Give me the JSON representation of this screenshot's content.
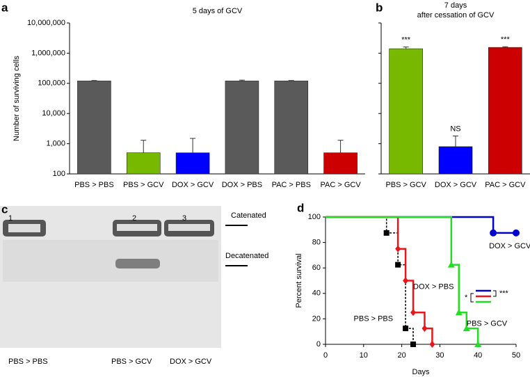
{
  "chart_data": [
    {
      "panel": "a",
      "type": "bar",
      "title": "5 days of GCV",
      "ylabel": "Number of surviving cells",
      "categories": [
        "PBS > PBS",
        "PBS > GCV",
        "DOX > GCV",
        "DOX > PBS",
        "PAC > PBS",
        "PAC > GCV"
      ],
      "values": [
        120000,
        500,
        500,
        120000,
        120000,
        500
      ],
      "errors": [
        4000,
        800,
        1000,
        8000,
        4000,
        800
      ],
      "colors": [
        "#5a5a5a",
        "#77b900",
        "#0000ff",
        "#5a5a5a",
        "#5a5a5a",
        "#cc0000"
      ],
      "log": true,
      "ylim": [
        100,
        10000000
      ],
      "yticks": [
        100,
        {
          "value": 1000,
          "label": "1,000"
        },
        {
          "value": 10000,
          "label": "10,000"
        },
        {
          "value": 100000,
          "label": "100,000"
        },
        {
          "value": 1000000,
          "label": "1,000,000"
        },
        {
          "value": 10000000,
          "label": "10,000,000"
        }
      ]
    },
    {
      "panel": "b",
      "type": "bar",
      "title": "7 days",
      "subtitle": "after cessation of GCV",
      "categories": [
        "PBS > GCV",
        "DOX > GCV",
        "PAC > GCV"
      ],
      "values": [
        1400000,
        800,
        1550000
      ],
      "errors": [
        200000,
        1000,
        80000
      ],
      "annotations": [
        "***",
        "NS",
        "***"
      ],
      "colors": [
        "#77b900",
        "#0000ff",
        "#cc0000"
      ],
      "log": true,
      "ylim": [
        100,
        10000000
      ],
      "yticks": [
        100,
        1000,
        10000,
        100000,
        1000000,
        10000000
      ]
    },
    {
      "panel": "d",
      "type": "line",
      "xlabel": "Days",
      "ylabel": "Percent survival",
      "xlim": [
        0,
        50
      ],
      "xticks": [
        0,
        10,
        20,
        30,
        40,
        50
      ],
      "ylim": [
        0,
        100
      ],
      "yticks": [
        0,
        20,
        40,
        60,
        80,
        100
      ],
      "series": [
        {
          "name": "DOX > GCV",
          "color": "#0000cc",
          "marker": "circle",
          "dashed": false,
          "x": [
            0,
            44,
            50
          ],
          "values": [
            100,
            87.5,
            87.5
          ]
        },
        {
          "name": "PBS > PBS",
          "color": "#000000",
          "marker": "square",
          "dashed": true,
          "x": [
            0,
            16,
            19,
            21,
            23
          ],
          "values": [
            100,
            87.5,
            62.5,
            12.5,
            0
          ]
        },
        {
          "name": "DOX > PBS",
          "color": "#e8161b",
          "marker": "diamond",
          "dashed": false,
          "x": [
            0,
            19,
            21,
            23,
            26,
            28
          ],
          "values": [
            100,
            75,
            50,
            25,
            12.5,
            0
          ]
        },
        {
          "name": "PBS > GCV",
          "color": "#22dd22",
          "marker": "triangle",
          "dashed": false,
          "x": [
            0,
            33,
            35,
            37,
            40
          ],
          "values": [
            100,
            62.5,
            25,
            12.5,
            0
          ]
        }
      ],
      "annotations": [
        "*",
        "***"
      ]
    }
  ],
  "gel": {
    "panel": "c",
    "lanes": [
      "1",
      "2",
      "3"
    ],
    "bands": [
      "Catenated",
      "Decatenated"
    ],
    "samples": [
      "PBS > PBS",
      "PBS > GCV",
      "DOX > GCV"
    ]
  }
}
